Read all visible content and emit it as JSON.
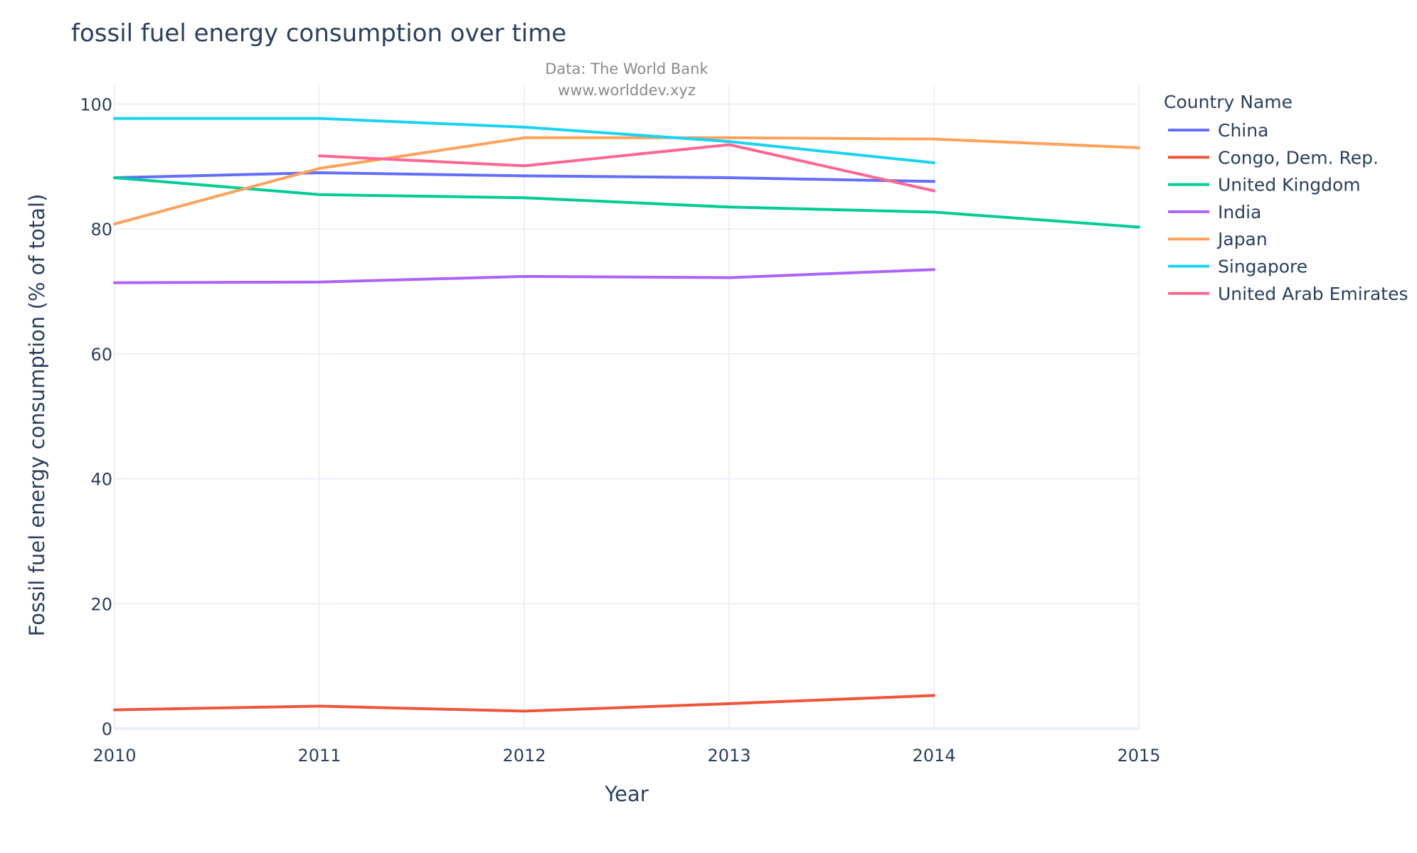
{
  "chart_data": {
    "type": "line",
    "title": "fossil fuel energy consumption over time",
    "subtitle_lines": [
      "Data: The World Bank",
      "www.worlddev.xyz"
    ],
    "xlabel": "Year",
    "ylabel": "Fossil fuel energy consumption (% of total)",
    "xlim": [
      2010,
      2015
    ],
    "ylim": [
      0,
      103
    ],
    "x_ticks": [
      2010,
      2011,
      2012,
      2013,
      2014,
      2015
    ],
    "y_ticks": [
      0,
      20,
      40,
      60,
      80,
      100
    ],
    "grid": true,
    "legend_title": "Country Name",
    "legend_position": "right",
    "series": [
      {
        "name": "China",
        "color": "#636efa",
        "points": [
          [
            2010,
            88.2
          ],
          [
            2011,
            89.0
          ],
          [
            2012,
            88.5
          ],
          [
            2013,
            88.2
          ],
          [
            2014,
            87.6
          ]
        ]
      },
      {
        "name": "Congo, Dem. Rep.",
        "color": "#ef553b",
        "points": [
          [
            2010,
            3.0
          ],
          [
            2011,
            3.6
          ],
          [
            2012,
            2.8
          ],
          [
            2013,
            4.0
          ],
          [
            2014,
            5.3
          ]
        ]
      },
      {
        "name": "United Kingdom",
        "color": "#00cc96",
        "points": [
          [
            2010,
            88.2
          ],
          [
            2011,
            85.5
          ],
          [
            2012,
            85.0
          ],
          [
            2013,
            83.5
          ],
          [
            2014,
            82.7
          ],
          [
            2015,
            80.3
          ]
        ]
      },
      {
        "name": "India",
        "color": "#ab63fa",
        "points": [
          [
            2010,
            71.4
          ],
          [
            2011,
            71.5
          ],
          [
            2012,
            72.4
          ],
          [
            2013,
            72.2
          ],
          [
            2014,
            73.5
          ]
        ]
      },
      {
        "name": "Japan",
        "color": "#ffa15a",
        "points": [
          [
            2010,
            80.8
          ],
          [
            2011,
            89.7
          ],
          [
            2012,
            94.6
          ],
          [
            2013,
            94.6
          ],
          [
            2014,
            94.4
          ],
          [
            2015,
            93.0
          ]
        ]
      },
      {
        "name": "Singapore",
        "color": "#19d3f3",
        "points": [
          [
            2010,
            97.7
          ],
          [
            2011,
            97.7
          ],
          [
            2012,
            96.3
          ],
          [
            2013,
            94.0
          ],
          [
            2014,
            90.6
          ]
        ]
      },
      {
        "name": "United Arab Emirates",
        "color": "#ff6692",
        "points": [
          [
            2011,
            91.7
          ],
          [
            2012,
            90.1
          ],
          [
            2013,
            93.5
          ],
          [
            2014,
            86.1
          ]
        ]
      }
    ]
  }
}
